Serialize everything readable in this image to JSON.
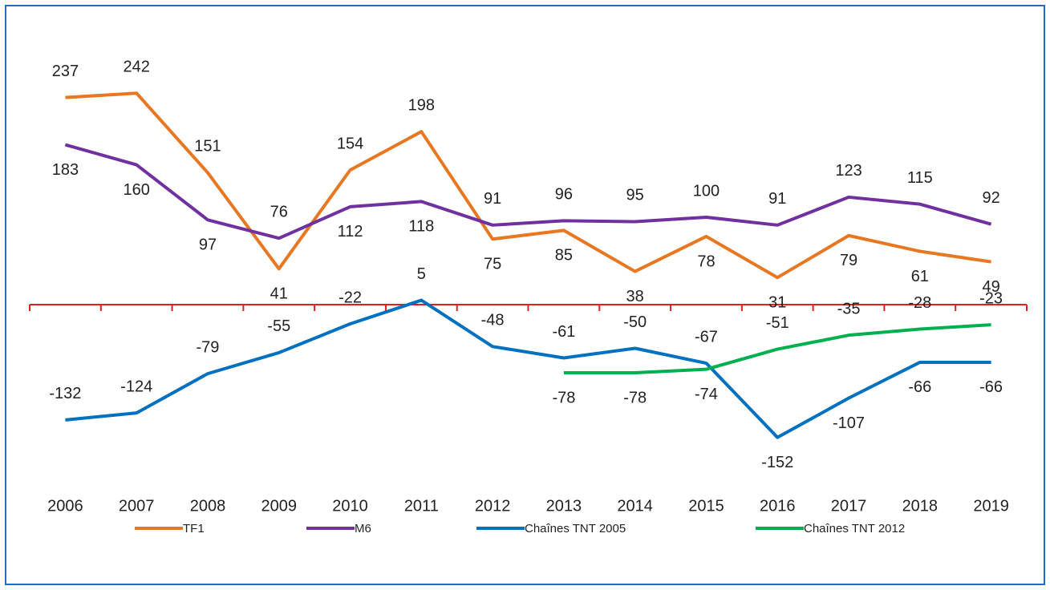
{
  "chart_data": {
    "type": "line",
    "categories": [
      "2006",
      "2007",
      "2008",
      "2009",
      "2010",
      "2011",
      "2012",
      "2013",
      "2014",
      "2015",
      "2016",
      "2017",
      "2018",
      "2019"
    ],
    "series": [
      {
        "name": "TF1",
        "color": "#e87722",
        "values": [
          237,
          242,
          151,
          41,
          154,
          198,
          75,
          85,
          38,
          78,
          31,
          79,
          61,
          49
        ]
      },
      {
        "name": "M6",
        "color": "#7030a0",
        "values": [
          183,
          160,
          97,
          76,
          112,
          118,
          91,
          96,
          95,
          100,
          91,
          123,
          115,
          92
        ]
      },
      {
        "name": "Chaînes TNT 2005",
        "color": "#0070c0",
        "values": [
          -132,
          -124,
          -79,
          -55,
          -22,
          5,
          -48,
          -61,
          -50,
          -67,
          -152,
          -107,
          -66,
          -66
        ]
      },
      {
        "name": "Chaînes TNT 2012",
        "color": "#00b050",
        "values": [
          null,
          null,
          null,
          null,
          null,
          null,
          null,
          -78,
          -78,
          -74,
          -51,
          -35,
          -28,
          -23
        ]
      }
    ],
    "ylim": [
      -220,
      260
    ],
    "axis_color": "#e0201b"
  }
}
